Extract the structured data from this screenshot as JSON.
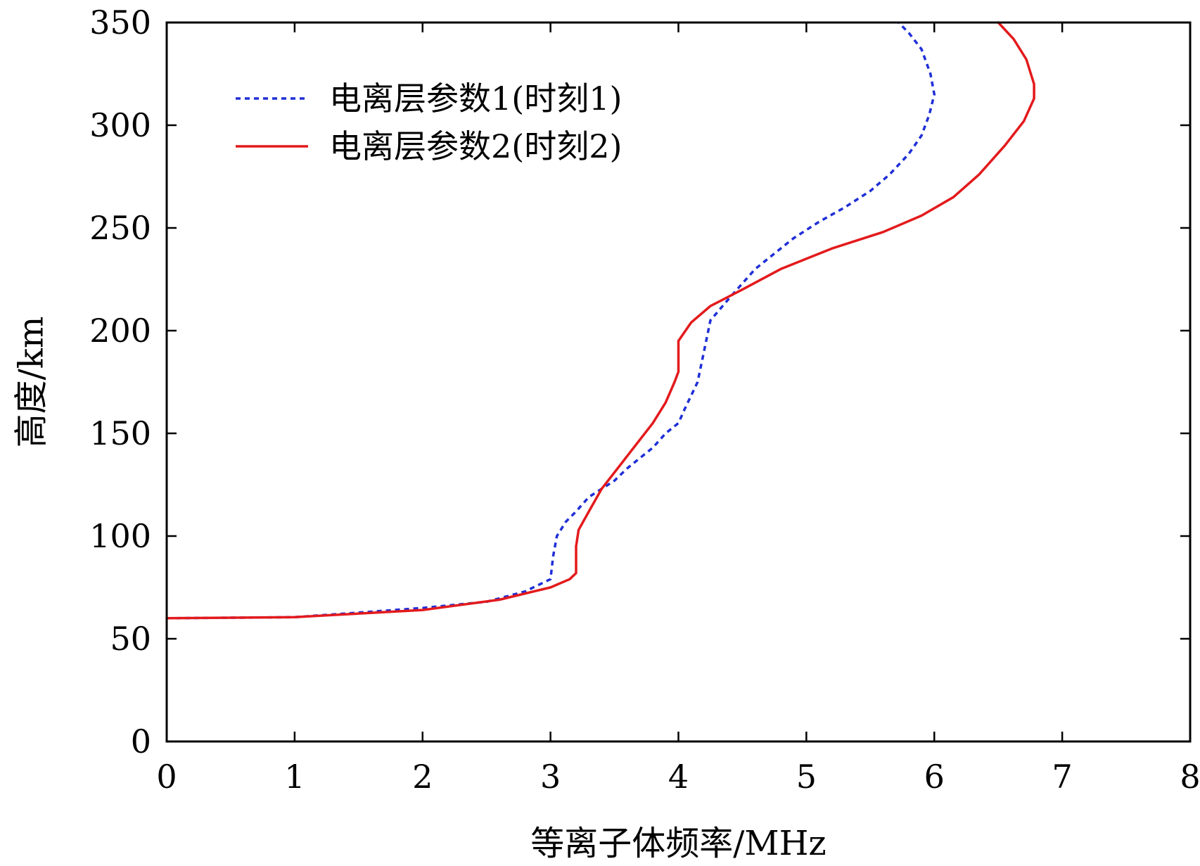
{
  "chart_data": {
    "type": "line",
    "xlabel": "等离子体频率/MHz",
    "ylabel": "高度/km",
    "xlim": [
      0,
      8
    ],
    "ylim": [
      0,
      350
    ],
    "xticks": [
      "0",
      "1",
      "2",
      "3",
      "4",
      "5",
      "6",
      "7",
      "8"
    ],
    "yticks": [
      "0",
      "50",
      "100",
      "150",
      "200",
      "250",
      "300",
      "350"
    ],
    "grid": false,
    "legend_position": "top-left",
    "series": [
      {
        "name": "电离层参数1(时刻1)",
        "color": "#1f2fd6",
        "style": "dashed",
        "points": [
          [
            0,
            60
          ],
          [
            1,
            60.5
          ],
          [
            2,
            65
          ],
          [
            2.5,
            68
          ],
          [
            2.8,
            73
          ],
          [
            3.0,
            79
          ],
          [
            3.02,
            90
          ],
          [
            3.05,
            100
          ],
          [
            3.12,
            107
          ],
          [
            3.2,
            112
          ],
          [
            3.3,
            119
          ],
          [
            3.5,
            127
          ],
          [
            3.6,
            133
          ],
          [
            3.7,
            138
          ],
          [
            3.8,
            143
          ],
          [
            3.9,
            150
          ],
          [
            4.0,
            155
          ],
          [
            4.05,
            162
          ],
          [
            4.15,
            175
          ],
          [
            4.2,
            190
          ],
          [
            4.25,
            205
          ],
          [
            4.4,
            216
          ],
          [
            4.6,
            230
          ],
          [
            4.9,
            245
          ],
          [
            5.1,
            253
          ],
          [
            5.3,
            260
          ],
          [
            5.5,
            268
          ],
          [
            5.65,
            276
          ],
          [
            5.8,
            286
          ],
          [
            5.9,
            295
          ],
          [
            5.96,
            305
          ],
          [
            6.0,
            315
          ],
          [
            5.97,
            325
          ],
          [
            5.9,
            337
          ],
          [
            5.8,
            345
          ],
          [
            5.72,
            350
          ]
        ]
      },
      {
        "name": "电离层参数2(时刻2)",
        "color": "#e31a1c",
        "style": "solid",
        "points": [
          [
            0,
            60
          ],
          [
            1,
            60.5
          ],
          [
            2,
            64
          ],
          [
            2.6,
            69
          ],
          [
            3.0,
            75
          ],
          [
            3.15,
            79
          ],
          [
            3.2,
            82
          ],
          [
            3.2,
            95
          ],
          [
            3.22,
            103
          ],
          [
            3.3,
            112
          ],
          [
            3.4,
            123
          ],
          [
            3.55,
            135
          ],
          [
            3.7,
            147
          ],
          [
            3.8,
            155
          ],
          [
            3.9,
            165
          ],
          [
            3.97,
            175
          ],
          [
            4.0,
            180
          ],
          [
            4.0,
            195
          ],
          [
            4.1,
            204
          ],
          [
            4.25,
            212
          ],
          [
            4.5,
            220
          ],
          [
            4.8,
            230
          ],
          [
            5.2,
            240
          ],
          [
            5.6,
            248
          ],
          [
            5.9,
            256
          ],
          [
            6.15,
            265
          ],
          [
            6.35,
            276
          ],
          [
            6.55,
            290
          ],
          [
            6.7,
            302
          ],
          [
            6.78,
            313
          ],
          [
            6.78,
            320
          ],
          [
            6.72,
            332
          ],
          [
            6.62,
            342
          ],
          [
            6.5,
            350
          ]
        ]
      }
    ]
  }
}
